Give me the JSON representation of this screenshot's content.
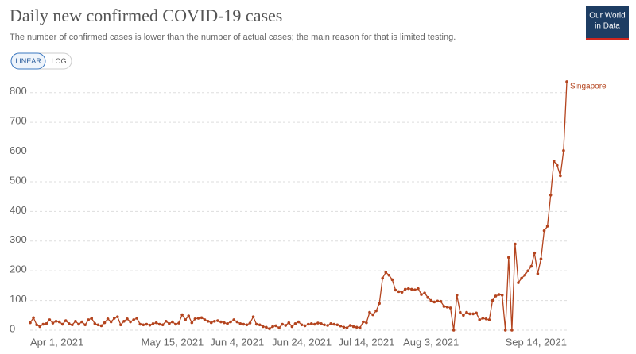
{
  "chart_data": {
    "type": "line",
    "title": "Daily new confirmed COVID-19 cases",
    "subtitle": "The number of confirmed cases is lower than the number of actual cases; the main reason for that is limited testing.",
    "logo": [
      "Our World",
      "in Data"
    ],
    "buttons": [
      "LINEAR",
      "LOG"
    ],
    "categories": [
      "Apr 1, 2021",
      null,
      null,
      null,
      null,
      null,
      null,
      null,
      null,
      null,
      null,
      null,
      null,
      null,
      null,
      null,
      null,
      null,
      null,
      null,
      null,
      null,
      null,
      null,
      null,
      null,
      null,
      null,
      null,
      null,
      null,
      null,
      null,
      null,
      null,
      null,
      null,
      null,
      null,
      null,
      null,
      null,
      null,
      null,
      "May 15, 2021",
      null,
      null,
      null,
      null,
      null,
      null,
      null,
      null,
      null,
      null,
      null,
      null,
      null,
      null,
      null,
      null,
      null,
      null,
      null,
      "Jun 4, 2021",
      null,
      null,
      null,
      null,
      null,
      null,
      null,
      null,
      null,
      null,
      null,
      null,
      null,
      null,
      null,
      null,
      null,
      null,
      null,
      "Jun 24, 2021",
      null,
      null,
      null,
      null,
      null,
      null,
      null,
      null,
      null,
      null,
      null,
      null,
      null,
      null,
      null,
      null,
      null,
      null,
      null,
      "Jul 14, 2021",
      null,
      null,
      null,
      null,
      null,
      null,
      null,
      null,
      null,
      null,
      null,
      null,
      null,
      null,
      null,
      null,
      null,
      null,
      null,
      "Aug 3, 2021",
      null,
      null,
      null,
      null,
      null,
      null,
      null,
      null,
      null,
      null,
      null,
      null,
      null,
      null,
      null,
      null,
      null,
      null,
      null,
      null,
      null,
      null,
      null,
      null,
      null,
      null,
      null,
      null,
      null,
      null,
      null,
      null,
      null,
      null,
      null,
      null,
      null,
      null,
      null,
      null,
      null,
      "Sep 14, 2021"
    ],
    "series": [
      {
        "name": "Singapore",
        "color": "#b4441e",
        "values": [
          25,
          42,
          18,
          12,
          20,
          22,
          35,
          24,
          30,
          28,
          20,
          32,
          22,
          18,
          30,
          20,
          28,
          18,
          35,
          40,
          22,
          18,
          15,
          25,
          38,
          28,
          40,
          45,
          18,
          30,
          38,
          28,
          35,
          40,
          20,
          18,
          20,
          17,
          22,
          25,
          20,
          18,
          30,
          22,
          28,
          20,
          24,
          52,
          35,
          48,
          25,
          38,
          40,
          42,
          35,
          30,
          25,
          30,
          32,
          28,
          25,
          22,
          28,
          35,
          28,
          22,
          20,
          18,
          24,
          45,
          20,
          18,
          12,
          10,
          5,
          12,
          15,
          8,
          20,
          16,
          25,
          12,
          22,
          28,
          18,
          15,
          20,
          22,
          20,
          24,
          22,
          18,
          16,
          22,
          20,
          18,
          14,
          10,
          8,
          16,
          12,
          10,
          8,
          28,
          25,
          60,
          52,
          65,
          90,
          175,
          195,
          185,
          170,
          135,
          130,
          128,
          138,
          140,
          138,
          136,
          140,
          120,
          125,
          110,
          100,
          95,
          98,
          97,
          80,
          78,
          75,
          0,
          118,
          60,
          50,
          60,
          55,
          55,
          58,
          35,
          40,
          38,
          35,
          100,
          115,
          120,
          118,
          0,
          245,
          0,
          290,
          160,
          175,
          185,
          200,
          215,
          260,
          190,
          240,
          335,
          350,
          455,
          570,
          555,
          520,
          605,
          837
        ]
      }
    ],
    "ylim": [
      0,
      850
    ],
    "yticks": [
      0,
      100,
      200,
      300,
      400,
      500,
      600,
      700,
      800
    ],
    "grid": true
  }
}
